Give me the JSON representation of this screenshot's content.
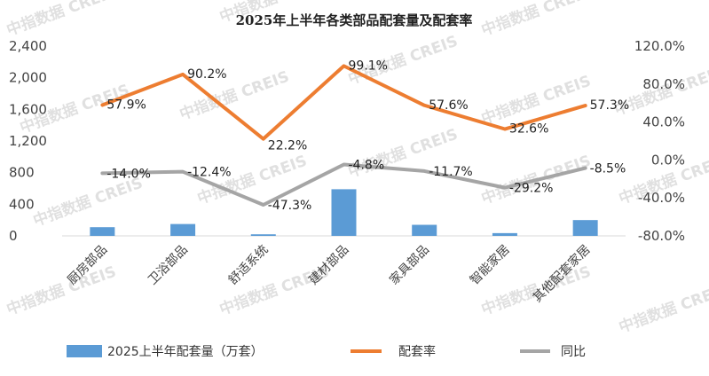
{
  "chart_data": {
    "title": "2025年上半年各类部品配套量及配套率",
    "type": "bar+line",
    "categories": [
      "厨房部品",
      "卫浴部品",
      "舒适系统",
      "建材部品",
      "家具部品",
      "智能家居",
      "其他配套家居"
    ],
    "series": [
      {
        "name": "2025上半年配套量（万套）",
        "type": "bar",
        "axis": "left",
        "color": "#5b9bd5",
        "values": [
          110,
          150,
          20,
          590,
          140,
          35,
          200
        ]
      },
      {
        "name": "配套率",
        "type": "line",
        "axis": "right",
        "color": "#ed7d31",
        "values": [
          57.9,
          90.2,
          22.2,
          99.1,
          57.6,
          32.6,
          57.3
        ],
        "labels": [
          "57.9%",
          "90.2%",
          "22.2%",
          "99.1%",
          "57.6%",
          "32.6%",
          "57.3%"
        ]
      },
      {
        "name": "同比",
        "type": "line",
        "axis": "right",
        "color": "#a5a5a5",
        "values": [
          -14.0,
          -12.4,
          -47.3,
          -4.8,
          -11.7,
          -29.2,
          -8.5
        ],
        "labels": [
          "-14.0%",
          "-12.4%",
          "-47.3%",
          "-4.8%",
          "-11.7%",
          "-29.2%",
          "-8.5%"
        ]
      }
    ],
    "y_left": {
      "ylim": [
        0,
        2400
      ],
      "ticks": [
        "2,400",
        "2,000",
        "1,600",
        "1,200",
        "800",
        "400",
        "0"
      ],
      "tick_values": [
        2400,
        2000,
        1600,
        1200,
        800,
        400,
        0
      ]
    },
    "y_right": {
      "ylim": [
        -80,
        120
      ],
      "ticks": [
        "120.0%",
        "80.0%",
        "40.0%",
        "0.0%",
        "-40.0%",
        "-80.0%"
      ],
      "tick_values": [
        120,
        80,
        40,
        0,
        -40,
        -80
      ]
    },
    "grid": false,
    "legend_position": "bottom"
  },
  "watermark": "中指数据 CREIS"
}
